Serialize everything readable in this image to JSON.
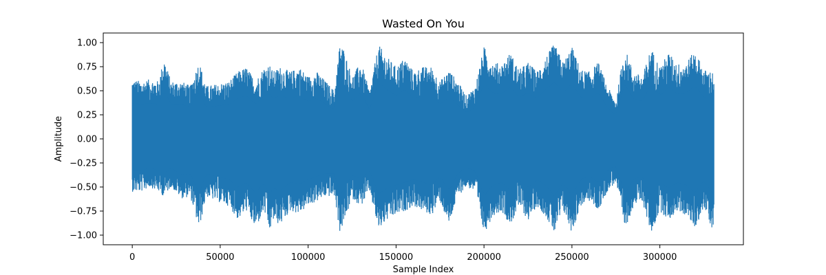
{
  "chart_data": {
    "type": "line",
    "title": "Wasted On You",
    "xlabel": "Sample Index",
    "ylabel": "Amplitude",
    "xlim": [
      -16500,
      347500
    ],
    "ylim": [
      -1.1,
      1.1
    ],
    "x_ticks": [
      0,
      50000,
      100000,
      150000,
      200000,
      250000,
      300000
    ],
    "x_tick_labels": [
      "0",
      "50000",
      "100000",
      "150000",
      "200000",
      "250000",
      "300000"
    ],
    "y_ticks": [
      -1.0,
      -0.75,
      -0.5,
      -0.25,
      0.0,
      0.25,
      0.5,
      0.75,
      1.0
    ],
    "y_tick_labels": [
      "−1.00",
      "−0.75",
      "−0.50",
      "−0.25",
      "0.00",
      "0.25",
      "0.50",
      "0.75",
      "1.00"
    ],
    "grid": false,
    "legend": false,
    "series": [
      {
        "color": "#1f77b4",
        "x_start": 0,
        "x_end": 330750,
        "envelope": {
          "x": [
            0,
            5000,
            10000,
            15000,
            18000,
            22000,
            28000,
            33000,
            38000,
            42000,
            48000,
            55000,
            60000,
            65000,
            70000,
            75000,
            78000,
            80000,
            84000,
            90000,
            95000,
            100000,
            105000,
            110000,
            115000,
            118000,
            120000,
            125000,
            130000,
            135000,
            140000,
            145000,
            150000,
            155000,
            160000,
            165000,
            170000,
            175000,
            180000,
            185000,
            190000,
            195000,
            200000,
            205000,
            210000,
            215000,
            220000,
            225000,
            230000,
            235000,
            240000,
            245000,
            250000,
            255000,
            260000,
            265000,
            270000,
            275000,
            280000,
            285000,
            290000,
            295000,
            300000,
            305000,
            310000,
            315000,
            320000,
            325000,
            330000
          ],
          "upper": [
            0.62,
            0.6,
            0.62,
            0.6,
            0.85,
            0.6,
            0.6,
            0.55,
            0.81,
            0.55,
            0.57,
            0.6,
            0.7,
            0.75,
            0.6,
            0.75,
            0.78,
            0.7,
            0.75,
            0.7,
            0.75,
            0.65,
            0.7,
            0.6,
            0.5,
            0.99,
            0.95,
            0.65,
            0.8,
            0.5,
            0.98,
            0.85,
            0.75,
            0.85,
            0.7,
            0.75,
            0.75,
            0.6,
            0.72,
            0.6,
            0.45,
            0.55,
            0.96,
            0.8,
            0.78,
            0.9,
            0.72,
            0.8,
            0.7,
            0.85,
            0.99,
            0.8,
            0.96,
            0.72,
            0.7,
            0.8,
            0.55,
            0.4,
            0.95,
            0.7,
            0.65,
            0.95,
            0.75,
            0.9,
            0.78,
            0.8,
            0.92,
            0.72,
            0.7
          ],
          "lower": [
            -0.55,
            -0.55,
            -0.5,
            -0.55,
            -0.6,
            -0.5,
            -0.62,
            -0.6,
            -0.94,
            -0.6,
            -0.65,
            -0.7,
            -0.84,
            -0.75,
            -0.94,
            -0.75,
            -0.98,
            -0.85,
            -0.9,
            -0.75,
            -0.78,
            -0.7,
            -0.65,
            -0.6,
            -0.6,
            -0.97,
            -0.9,
            -0.62,
            -0.7,
            -0.55,
            -0.95,
            -0.85,
            -0.8,
            -0.75,
            -0.7,
            -0.75,
            -0.8,
            -0.65,
            -0.9,
            -0.6,
            -0.5,
            -0.55,
            -0.99,
            -0.8,
            -0.75,
            -0.9,
            -0.7,
            -0.85,
            -0.7,
            -0.8,
            -0.99,
            -0.75,
            -0.98,
            -0.7,
            -0.65,
            -0.75,
            -0.55,
            -0.45,
            -0.95,
            -0.7,
            -0.65,
            -0.99,
            -0.75,
            -0.85,
            -0.75,
            -0.8,
            -0.93,
            -0.72,
            -0.95
          ]
        }
      }
    ]
  }
}
